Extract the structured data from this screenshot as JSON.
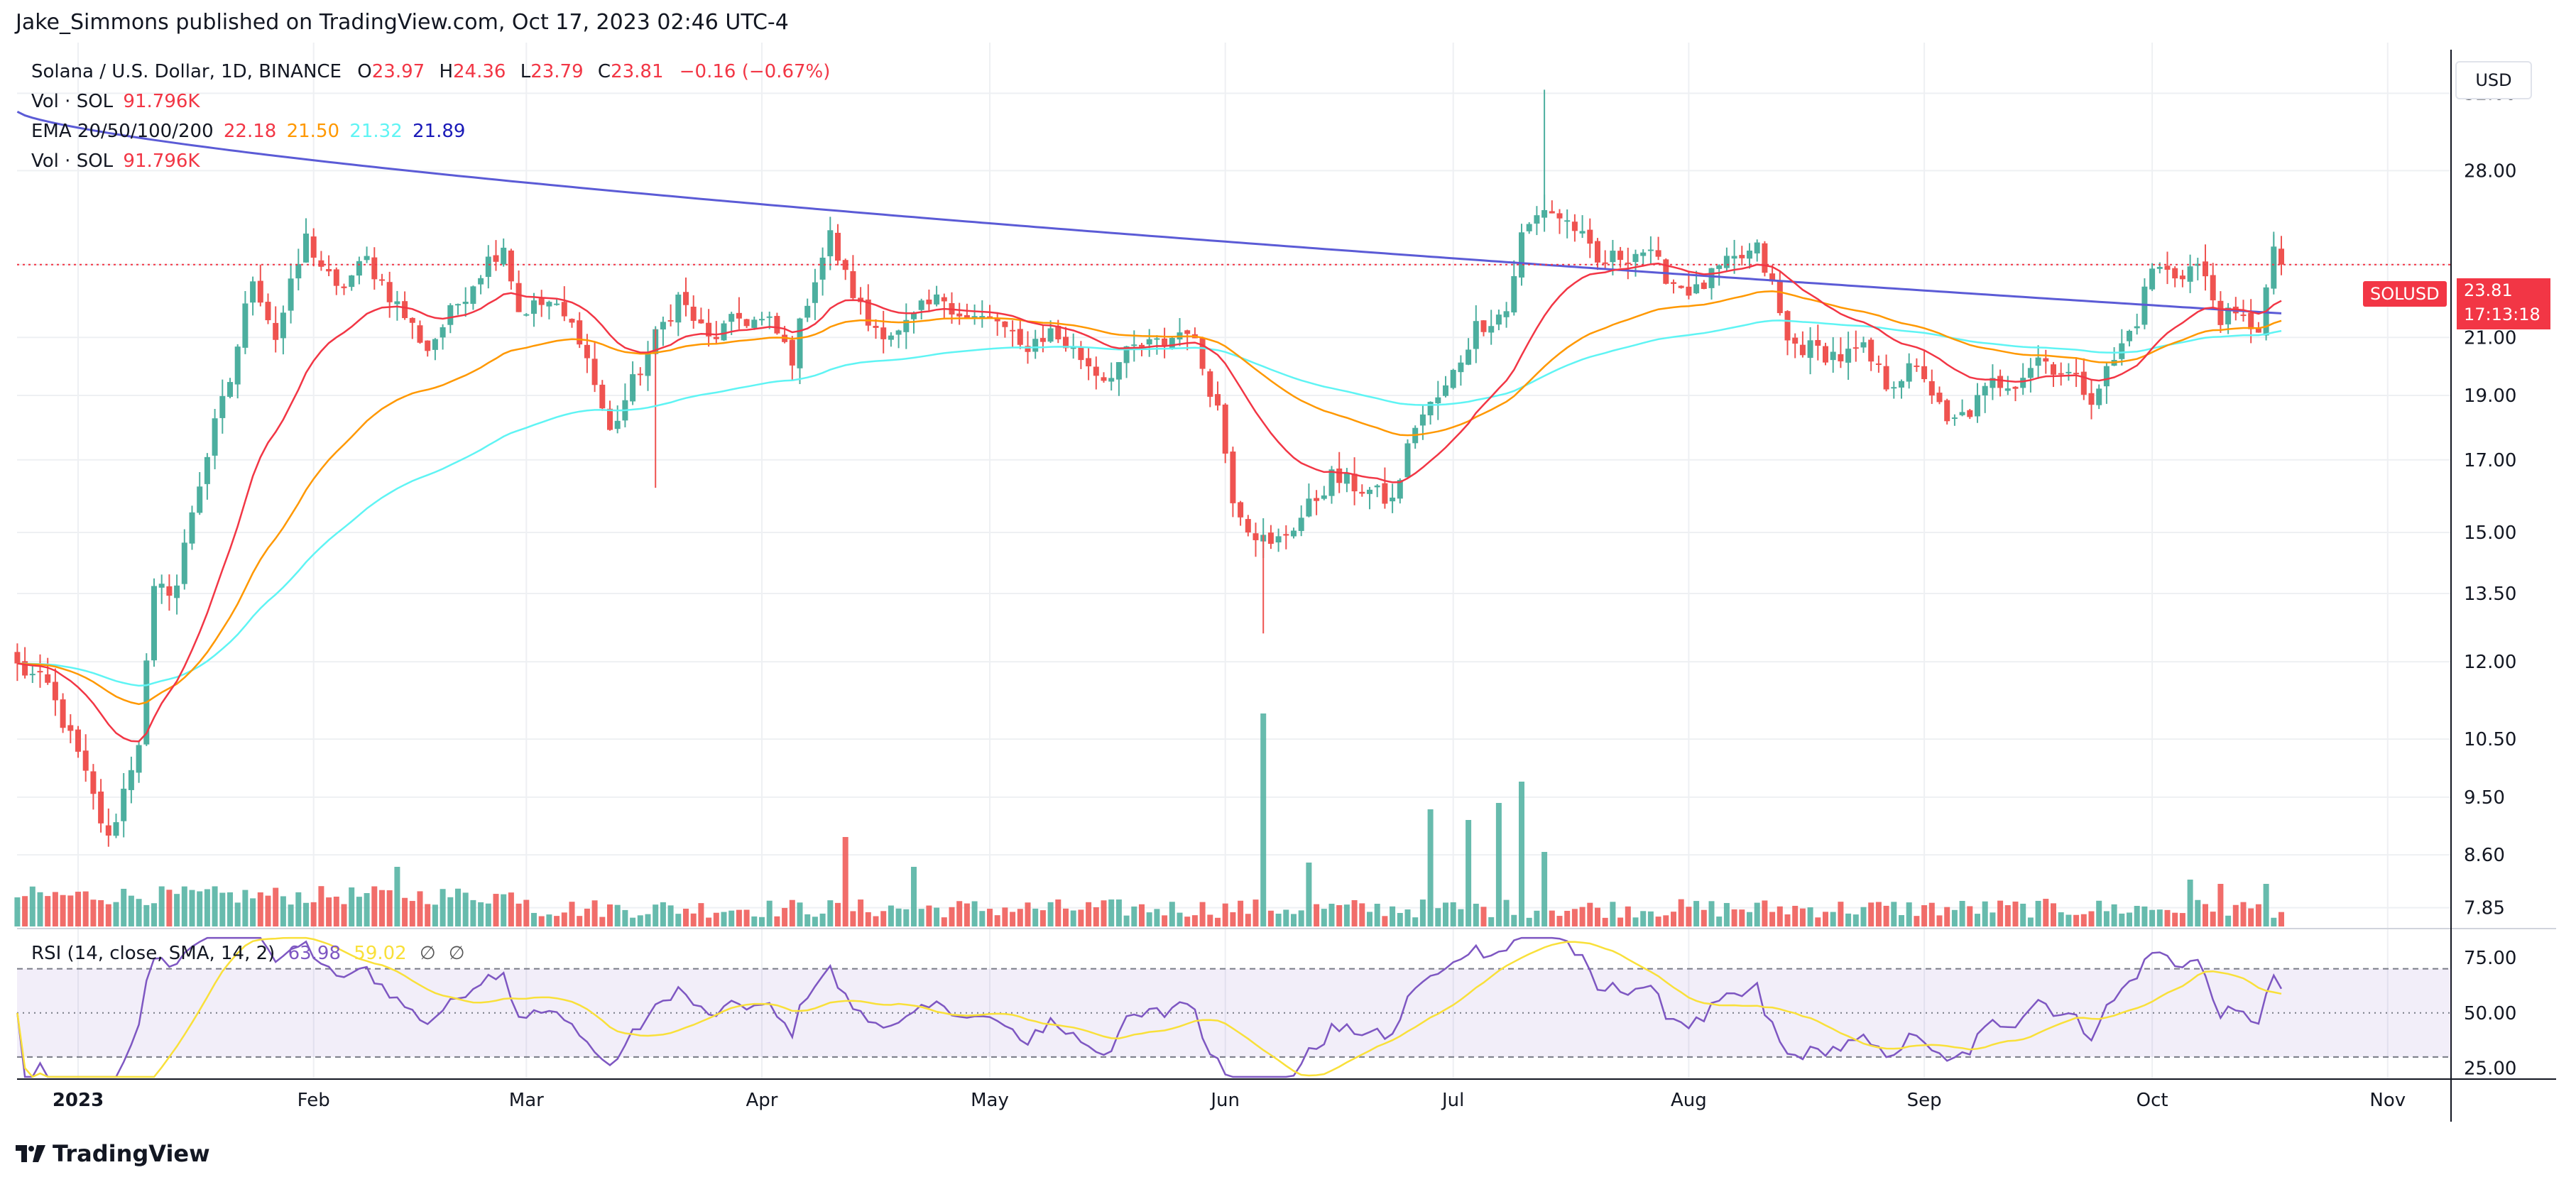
{
  "header": {
    "title": "Jake_Simmons published on TradingView.com, Oct 17, 2023 02:46 UTC-4"
  },
  "legend": {
    "symbol": "Solana / U.S. Dollar, 1D, BINANCE",
    "o_label": "O",
    "o_value": "23.97",
    "h_label": "H",
    "h_value": "24.36",
    "l_label": "L",
    "l_value": "23.79",
    "c_label": "C",
    "c_value": "23.81",
    "change": "−0.16 (−0.67%)",
    "vol_label": "Vol · SOL",
    "vol_value": "91.796K",
    "ema_label": "EMA 20/50/100/200",
    "ema20": "22.18",
    "ema50": "21.50",
    "ema100": "21.32",
    "ema200": "21.89",
    "vol2_label": "Vol · SOL",
    "vol2_value": "91.796K"
  },
  "rsi_legend": {
    "label": "RSI (14, close, SMA, 14, 2)",
    "rsi": "63.98",
    "sma": "59.02",
    "icon1": "∅",
    "icon2": "∅"
  },
  "currency": "USD",
  "price_tag": {
    "symbol": "SOLUSD",
    "price": "23.81",
    "countdown": "17:13:18"
  },
  "footer": {
    "brand": "TradingView"
  },
  "colors": {
    "up": "#4caf9f",
    "down": "#ef5350",
    "ema20": "#f23645",
    "ema50": "#ff9800",
    "ema100": "#5ff4f4",
    "ema200": "#5b5bd6",
    "rsi": "#7e57c2",
    "rsi_sma": "#f9e03a"
  },
  "chart_data": {
    "type": "candlestick",
    "price_axis_ticks": [
      "32.00",
      "28.00",
      "23.81",
      "21.00",
      "19.00",
      "17.00",
      "15.00",
      "13.50",
      "12.00",
      "10.50",
      "9.50",
      "8.60",
      "7.85"
    ],
    "rsi_axis_ticks": [
      "75.00",
      "50.00",
      "25.00"
    ],
    "x_ticks": [
      "2023",
      "Feb",
      "Mar",
      "Apr",
      "May",
      "Jun",
      "Jul",
      "Aug",
      "Sep",
      "Oct",
      "Nov"
    ],
    "x_tick_days": [
      0,
      31,
      59,
      90,
      120,
      151,
      181,
      212,
      243,
      273,
      304
    ],
    "log_scale": true,
    "ylim": [
      7.6,
      34.5
    ],
    "rsi_ylim": [
      20,
      85
    ],
    "anchors": [
      [
        -8,
        11.9
      ],
      [
        -4,
        11.5
      ],
      [
        0,
        10.2
      ],
      [
        4,
        8.8
      ],
      [
        8,
        10.5
      ],
      [
        10,
        13.5
      ],
      [
        13,
        13.7
      ],
      [
        15,
        15.6
      ],
      [
        18,
        18.0
      ],
      [
        20,
        19.5
      ],
      [
        23,
        23.4
      ],
      [
        26,
        21.0
      ],
      [
        30,
        24.9
      ],
      [
        34,
        22.7
      ],
      [
        38,
        24.0
      ],
      [
        42,
        22.2
      ],
      [
        46,
        20.6
      ],
      [
        50,
        22.3
      ],
      [
        54,
        24.0
      ],
      [
        56,
        24.7
      ],
      [
        58,
        22.0
      ],
      [
        62,
        22.3
      ],
      [
        66,
        21.1
      ],
      [
        70,
        17.8
      ],
      [
        73,
        19.4
      ],
      [
        76,
        21.0
      ],
      [
        79,
        22.5
      ],
      [
        83,
        20.9
      ],
      [
        87,
        21.7
      ],
      [
        91,
        21.5
      ],
      [
        94,
        20.3
      ],
      [
        96,
        22.5
      ],
      [
        99,
        25.0
      ],
      [
        101,
        23.3
      ],
      [
        104,
        21.5
      ],
      [
        108,
        21.1
      ],
      [
        111,
        22.0
      ],
      [
        114,
        22.5
      ],
      [
        117,
        21.7
      ],
      [
        121,
        21.6
      ],
      [
        124,
        20.6
      ],
      [
        128,
        21.2
      ],
      [
        132,
        20.3
      ],
      [
        135,
        19.6
      ],
      [
        139,
        20.6
      ],
      [
        143,
        20.8
      ],
      [
        146,
        21.4
      ],
      [
        148,
        20.0
      ],
      [
        150,
        18.6
      ],
      [
        152,
        16.0
      ],
      [
        154,
        15.2
      ],
      [
        157,
        14.6
      ],
      [
        161,
        15.4
      ],
      [
        165,
        16.5
      ],
      [
        170,
        16.1
      ],
      [
        173,
        15.8
      ],
      [
        176,
        18.1
      ],
      [
        180,
        19.2
      ],
      [
        184,
        21.4
      ],
      [
        188,
        22.0
      ],
      [
        190,
        25.0
      ],
      [
        193,
        26.3
      ],
      [
        197,
        25.4
      ],
      [
        200,
        23.8
      ],
      [
        203,
        24.2
      ],
      [
        206,
        24.4
      ],
      [
        210,
        23.1
      ],
      [
        213,
        22.7
      ],
      [
        216,
        23.6
      ],
      [
        219,
        24.1
      ],
      [
        221,
        24.4
      ],
      [
        223,
        22.9
      ],
      [
        225,
        20.8
      ],
      [
        228,
        20.6
      ],
      [
        232,
        20.3
      ],
      [
        235,
        20.5
      ],
      [
        238,
        19.4
      ],
      [
        241,
        19.8
      ],
      [
        243,
        19.7
      ],
      [
        246,
        18.0
      ],
      [
        249,
        18.5
      ],
      [
        252,
        19.4
      ],
      [
        255,
        19.5
      ],
      [
        258,
        20.3
      ],
      [
        262,
        19.7
      ],
      [
        265,
        19.0
      ],
      [
        268,
        20.2
      ],
      [
        271,
        21.7
      ],
      [
        273,
        23.7
      ],
      [
        276,
        23.4
      ],
      [
        279,
        23.8
      ],
      [
        282,
        21.8
      ],
      [
        285,
        21.6
      ],
      [
        287,
        21.4
      ],
      [
        289,
        24.2
      ],
      [
        290,
        23.81
      ]
    ],
    "volume_spikes": [
      [
        42,
        0.28
      ],
      [
        101,
        0.42
      ],
      [
        110,
        0.28
      ],
      [
        156,
        1.0
      ],
      [
        162,
        0.3
      ],
      [
        178,
        0.55
      ],
      [
        183,
        0.5
      ],
      [
        187,
        0.58
      ],
      [
        190,
        0.68
      ],
      [
        193,
        0.35
      ],
      [
        278,
        0.22
      ],
      [
        282,
        0.2
      ],
      [
        288,
        0.2
      ]
    ],
    "series": [
      {
        "name": "EMA 20",
        "last": 22.18
      },
      {
        "name": "EMA 50",
        "last": 21.5
      },
      {
        "name": "EMA 100",
        "last": 21.32
      },
      {
        "name": "EMA 200",
        "last": 21.89
      },
      {
        "name": "RSI",
        "last": 63.98
      },
      {
        "name": "RSI SMA",
        "last": 59.02
      }
    ]
  }
}
